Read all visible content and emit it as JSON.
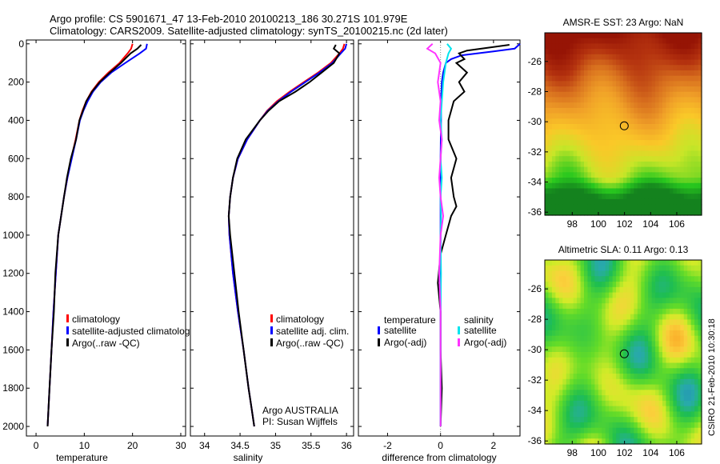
{
  "header": {
    "line1": "Argo profile: CS 5901671_47 13-Feb-2010 20100213_186 30.271S 101.979E",
    "line2": "Climatology: CARS2009. Satellite-adjusted climatology: synTS_20100215.nc (2d later)"
  },
  "colors": {
    "climatology": "#ff0000",
    "satellite": "#0000ff",
    "argo": "#000000",
    "sal_satellite": "#00e5ee",
    "sal_argo": "#ff33ff"
  },
  "chart_data": [
    {
      "type": "line",
      "id": "temperature",
      "xlabel": "temperature",
      "ylabel": "",
      "xlim": [
        -2,
        31
      ],
      "ylim": [
        2050,
        -20
      ],
      "xticks": [
        0,
        10,
        20,
        30
      ],
      "yticks": [
        0,
        200,
        400,
        600,
        800,
        1000,
        1200,
        1400,
        1600,
        1800,
        2000
      ],
      "legend": [
        "climatology",
        "satellite-adjusted climatology",
        "Argo(..raw -QC)"
      ],
      "series": [
        {
          "name": "climatology",
          "color": "#ff0000",
          "x": [
            20.0,
            19.7,
            19.0,
            17.3,
            15.0,
            13.0,
            11.5,
            10.4,
            9.6,
            9.0,
            8.2,
            7.3,
            6.5,
            5.8,
            5.2,
            4.6,
            4.1,
            3.6,
            3.2,
            2.8,
            2.6,
            2.4
          ],
          "y": [
            0,
            25,
            50,
            100,
            150,
            200,
            250,
            300,
            350,
            400,
            500,
            600,
            700,
            800,
            900,
            1000,
            1200,
            1400,
            1600,
            1800,
            1900,
            2000
          ]
        },
        {
          "name": "satellite-adjusted climatology",
          "color": "#0000ff",
          "x": [
            23.0,
            22.8,
            21.5,
            18.5,
            15.6,
            13.4,
            11.8,
            10.7,
            9.8,
            9.1,
            8.3,
            7.4,
            6.5,
            5.8,
            5.2,
            4.6,
            4.1,
            3.6,
            3.2,
            2.8,
            2.6,
            2.4
          ],
          "y": [
            0,
            25,
            50,
            100,
            150,
            200,
            250,
            300,
            350,
            400,
            500,
            600,
            700,
            800,
            900,
            1000,
            1200,
            1400,
            1600,
            1800,
            1900,
            2000
          ]
        },
        {
          "name": "Argo(..raw -QC)",
          "color": "#000000",
          "x": [
            21.8,
            21.0,
            19.6,
            17.6,
            15.3,
            13.2,
            11.6,
            10.4,
            9.7,
            9.0,
            8.3,
            7.2,
            6.4,
            5.8,
            5.2,
            4.6,
            4.0,
            3.7,
            3.2,
            2.8,
            2.6,
            2.4
          ],
          "y": [
            5,
            25,
            50,
            100,
            150,
            200,
            250,
            300,
            350,
            400,
            500,
            600,
            700,
            800,
            900,
            1000,
            1200,
            1400,
            1600,
            1800,
            1900,
            2000
          ]
        }
      ]
    },
    {
      "type": "line",
      "id": "salinity",
      "xlabel": "salinity",
      "ylabel": "",
      "xlim": [
        33.8,
        36.1
      ],
      "ylim": [
        2050,
        -20
      ],
      "xticks": [
        34,
        34.5,
        35,
        35.5,
        36
      ],
      "legend": [
        "climatology",
        "satellite adj. clim.",
        "Argo(..raw -QC)"
      ],
      "annotation": [
        "Argo AUSTRALIA",
        "PI: Susan Wijffels"
      ],
      "series": [
        {
          "name": "climatology",
          "color": "#ff0000",
          "x": [
            35.97,
            35.95,
            35.9,
            35.78,
            35.6,
            35.4,
            35.2,
            35.02,
            34.88,
            34.78,
            34.6,
            34.47,
            34.4,
            34.36,
            34.34,
            34.35,
            34.4,
            34.47,
            34.55,
            34.62,
            34.66,
            34.7
          ],
          "y": [
            0,
            25,
            50,
            100,
            150,
            200,
            250,
            300,
            350,
            400,
            500,
            600,
            700,
            800,
            900,
            1000,
            1200,
            1400,
            1600,
            1800,
            1900,
            2000
          ]
        },
        {
          "name": "satellite adj. clim.",
          "color": "#0000ff",
          "x": [
            36.0,
            35.98,
            35.92,
            35.8,
            35.62,
            35.42,
            35.22,
            35.04,
            34.89,
            34.78,
            34.6,
            34.47,
            34.4,
            34.36,
            34.34,
            34.35,
            34.4,
            34.47,
            34.55,
            34.62,
            34.66,
            34.7
          ],
          "y": [
            0,
            25,
            50,
            100,
            150,
            200,
            250,
            300,
            350,
            400,
            500,
            600,
            700,
            800,
            900,
            1000,
            1200,
            1400,
            1600,
            1800,
            1900,
            2000
          ]
        },
        {
          "name": "Argo(..raw -QC)",
          "color": "#000000",
          "x": [
            35.85,
            35.82,
            35.9,
            35.82,
            35.65,
            35.48,
            35.28,
            35.05,
            34.9,
            34.78,
            34.58,
            34.46,
            34.4,
            34.36,
            34.34,
            34.36,
            34.42,
            34.48,
            34.55,
            34.62,
            34.66,
            34.7
          ],
          "y": [
            5,
            25,
            50,
            100,
            150,
            200,
            250,
            300,
            350,
            400,
            500,
            600,
            700,
            800,
            900,
            1000,
            1200,
            1400,
            1600,
            1800,
            1900,
            2000
          ]
        }
      ]
    },
    {
      "type": "line",
      "id": "difference",
      "xlabel": "difference from climatology",
      "ylabel": "",
      "xlim": [
        -3.1,
        3.0
      ],
      "ylim": [
        2050,
        -20
      ],
      "xticks": [
        -2,
        0,
        2
      ],
      "legend_groups": [
        {
          "title": "temperature",
          "items": [
            "satellite",
            "Argo(-adj)"
          ]
        },
        {
          "title": "salinity",
          "items": [
            "satellite",
            "Argo(-adj)"
          ]
        }
      ],
      "series": [
        {
          "name": "temperature satellite",
          "color": "#0000ff",
          "x": [
            3.0,
            2.8,
            2.0,
            0.8,
            0.4,
            0.2,
            0.1,
            0.05,
            0.02,
            0.02,
            0.01,
            0.0,
            0.0,
            0.0,
            0.0,
            0.0,
            0.0,
            0.0,
            0.0,
            0.0
          ],
          "y": [
            0,
            25,
            40,
            60,
            80,
            100,
            150,
            200,
            300,
            400,
            500,
            600,
            800,
            1000,
            1200,
            1400,
            1600,
            1800,
            1900,
            2000
          ]
        },
        {
          "name": "temperature Argo(-adj)",
          "color": "#000000",
          "x": [
            2.6,
            1.8,
            1.0,
            0.7,
            0.9,
            0.6,
            1.0,
            0.7,
            0.9,
            0.5,
            0.3,
            0.3,
            0.6,
            0.4,
            0.5,
            0.6,
            0.4,
            0.3,
            0.2,
            0.0,
            -0.1,
            0.0,
            0.0,
            0.05,
            0.0
          ],
          "y": [
            5,
            20,
            35,
            50,
            80,
            100,
            150,
            200,
            250,
            300,
            400,
            500,
            600,
            700,
            800,
            850,
            900,
            950,
            1000,
            1100,
            1250,
            1400,
            1600,
            1800,
            2000
          ]
        },
        {
          "name": "salinity satellite",
          "color": "#00e5ee",
          "x": [
            0.25,
            0.4,
            0.3,
            0.2,
            0.1,
            0.05,
            0.0,
            0.05,
            0.0,
            0.05,
            0.0,
            0.02,
            0.0,
            0.02,
            0.0,
            0.0,
            0.0,
            0.0,
            0.0
          ],
          "y": [
            0,
            25,
            50,
            100,
            200,
            300,
            400,
            500,
            600,
            700,
            800,
            900,
            1000,
            1200,
            1400,
            1600,
            1800,
            1900,
            2000
          ]
        },
        {
          "name": "salinity Argo(-adj)",
          "color": "#ff33ff",
          "x": [
            -0.3,
            -0.5,
            -0.2,
            0.0,
            -0.1,
            0.0,
            -0.05,
            0.05,
            0.0,
            -0.05,
            0.0,
            0.1,
            0.0,
            -0.05,
            0.0,
            0.0,
            0.0
          ],
          "y": [
            0,
            25,
            50,
            100,
            200,
            300,
            400,
            500,
            600,
            700,
            800,
            900,
            1000,
            1200,
            1400,
            1700,
            2000
          ]
        }
      ]
    },
    {
      "type": "heatmap",
      "id": "sst-map",
      "title": "AMSR-E SST: 23 Argo: NaN",
      "xticks": [
        98,
        100,
        102,
        104,
        106
      ],
      "yticks": [
        -26,
        -28,
        -30,
        -32,
        -34,
        -36
      ],
      "xlim": [
        95.9,
        107.9
      ],
      "ylim": [
        -36.2,
        -24.1
      ],
      "marker": {
        "lon": 101.98,
        "lat": -30.27
      }
    },
    {
      "type": "heatmap",
      "id": "sla-map",
      "title": "Altimetric SLA: 0.11 Argo: 0.13",
      "xticks": [
        98,
        100,
        102,
        104,
        106
      ],
      "yticks": [
        -26,
        -28,
        -30,
        -32,
        -34,
        -36
      ],
      "xlim": [
        95.9,
        107.9
      ],
      "ylim": [
        -36.2,
        -24.1
      ],
      "marker": {
        "lon": 101.98,
        "lat": -30.27
      }
    }
  ],
  "footer_stamp": "CSIRO 21-Feb-2010 10:30:18"
}
